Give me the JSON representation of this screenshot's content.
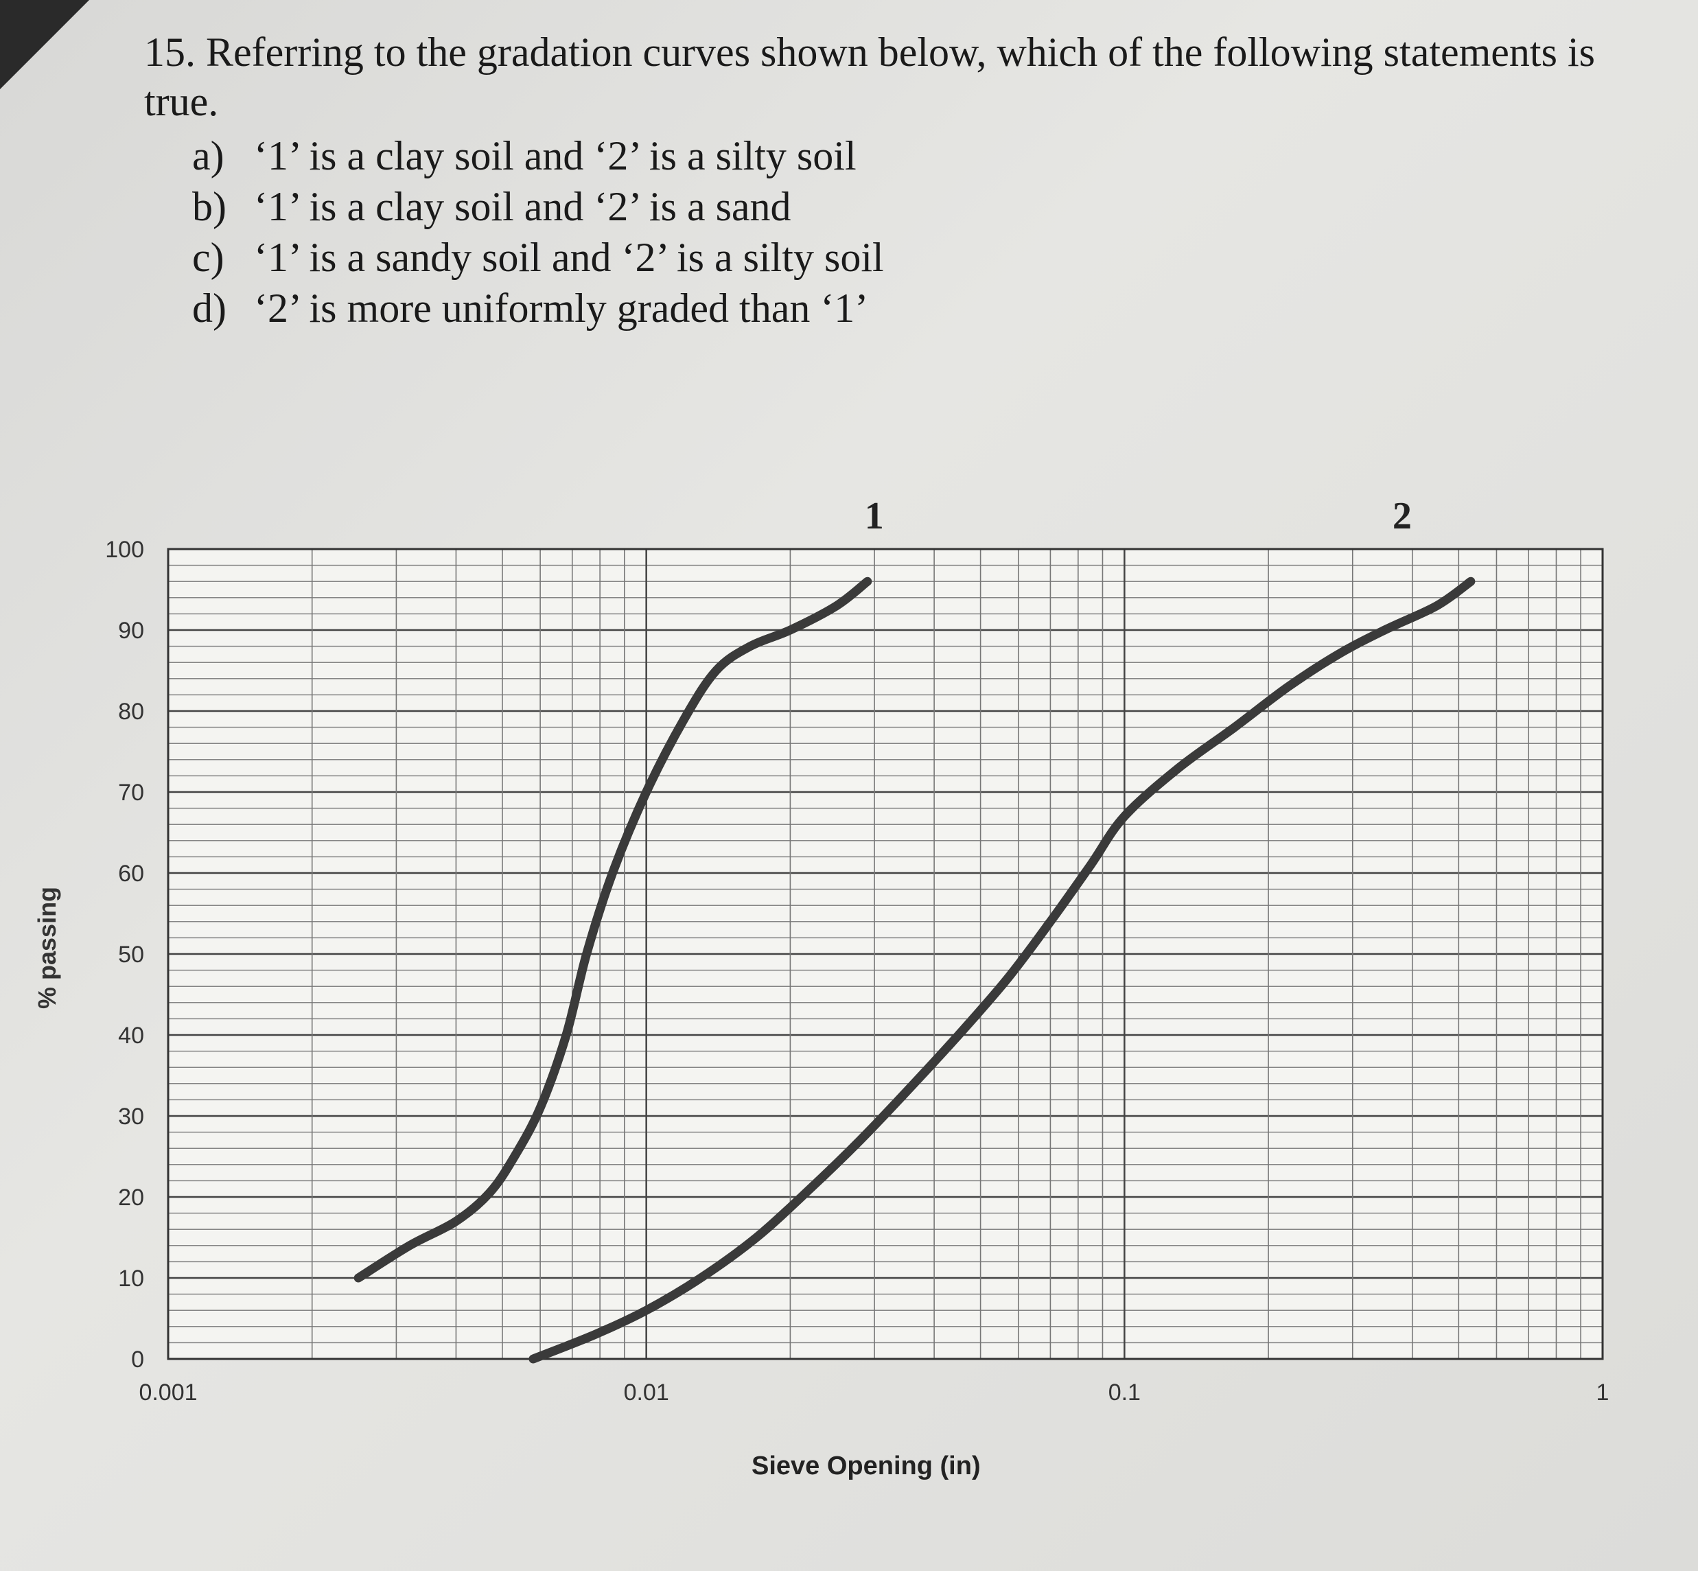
{
  "question": {
    "number": "15.",
    "stem": "Referring to the gradation curves shown below, which of the following statements is true.",
    "options": [
      {
        "letter": "a)",
        "text": "‘1’ is a clay soil and ‘2’ is a silty soil"
      },
      {
        "letter": "b)",
        "text": "‘1’ is a clay soil and ‘2’ is a sand"
      },
      {
        "letter": "c)",
        "text": "‘1’ is a sandy soil and ‘2’ is a silty soil"
      },
      {
        "letter": "d)",
        "text": "‘2’ is more uniformly graded than ‘1’"
      }
    ]
  },
  "chart_data": {
    "type": "line",
    "xlabel": "Sieve Opening (in)",
    "ylabel": "% passing",
    "x_scale": "log",
    "xlim": [
      0.001,
      1
    ],
    "ylim": [
      0,
      100
    ],
    "x_ticks": [
      "0.001",
      "0.01",
      "0.1",
      "1"
    ],
    "y_ticks": [
      "0",
      "10",
      "20",
      "30",
      "40",
      "50",
      "60",
      "70",
      "80",
      "90",
      "100"
    ],
    "grid": true,
    "series": [
      {
        "name": "1",
        "x": [
          0.0025,
          0.0032,
          0.004,
          0.0047,
          0.0053,
          0.006,
          0.0068,
          0.0075,
          0.0085,
          0.01,
          0.012,
          0.014,
          0.0165,
          0.02,
          0.025,
          0.029
        ],
        "y": [
          10,
          14,
          17,
          20.5,
          25,
          31,
          40,
          50,
          60,
          70,
          79,
          85,
          88,
          90,
          93,
          96
        ]
      },
      {
        "name": "2",
        "x": [
          0.0058,
          0.0078,
          0.01,
          0.013,
          0.017,
          0.022,
          0.028,
          0.035,
          0.045,
          0.057,
          0.07,
          0.085,
          0.1,
          0.13,
          0.17,
          0.22,
          0.28,
          0.35,
          0.45,
          0.53
        ],
        "y": [
          0,
          3,
          6,
          10,
          15,
          21,
          27,
          33,
          40,
          47,
          54,
          61,
          67,
          73,
          78,
          83,
          87,
          90,
          93,
          96
        ]
      }
    ]
  }
}
